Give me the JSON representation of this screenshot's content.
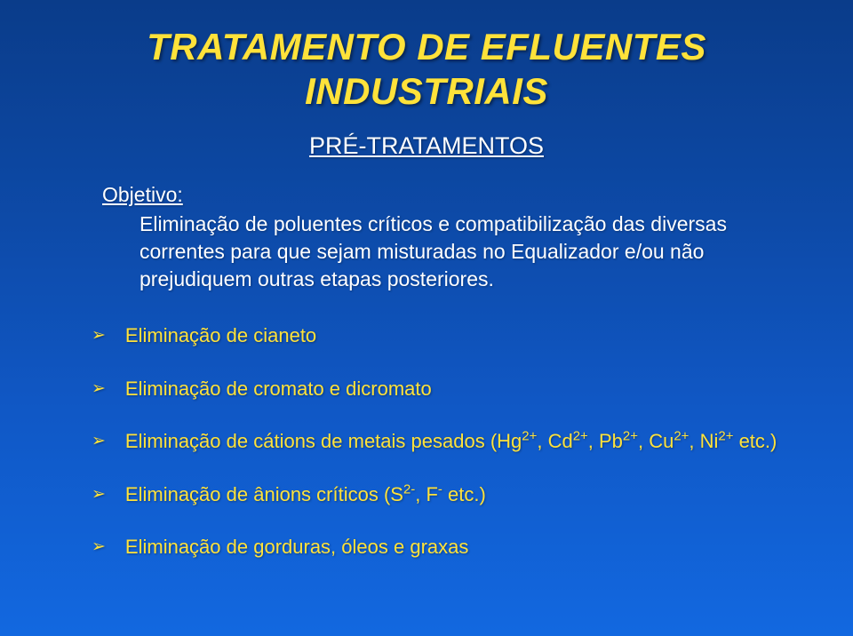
{
  "title_line1": "TRATAMENTO DE EFLUENTES",
  "title_line2": "INDUSTRIAIS",
  "subtitle": "PRÉ-TRATAMENTOS",
  "objective_label": "Objetivo:",
  "objective_text": "Eliminação de poluentes críticos e compatibilização das diversas correntes para que sejam misturadas no Equalizador e/ou não prejudiquem outras etapas posteriores.",
  "bullets": {
    "b0": "Eliminação de cianeto",
    "b1": "Eliminação de cromato e dicromato",
    "b2_html": "Eliminação de cátions de metais pesados (Hg<sup>2+</sup>, Cd<sup>2+</sup>, Pb<sup>2+</sup>, Cu<sup>2+</sup>, Ni<sup>2+</sup> etc.)",
    "b3_html": "Eliminação de ânions críticos (S<sup>2-</sup>, F<sup>-</sup> etc.)",
    "b4": "Eliminação de gorduras, óleos e graxas"
  },
  "colors": {
    "title_color": "#ffe23a",
    "body_text_color": "#ffffff",
    "bullet_color": "#ffe23a",
    "bg_top": "#0a3c8a",
    "bg_bottom": "#1268e0"
  },
  "fonts": {
    "title_size_pt": 42,
    "subtitle_size_pt": 27,
    "body_size_pt": 23,
    "bullet_size_pt": 22
  }
}
